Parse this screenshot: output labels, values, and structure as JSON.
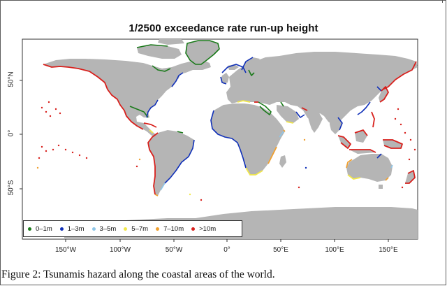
{
  "map": {
    "title": "1/2500 exceedance rate run-up height",
    "caption": "Figure 2: Tsunamis hazard along the coastal areas of the world.",
    "projection": "equirectangular",
    "land_color": "#b5b5b5",
    "ocean_color": "#ffffff",
    "lat_labels": {
      "n50": "50°N",
      "eq": "0°",
      "s50": "50°S"
    },
    "lon_labels": {
      "w150": "150°W",
      "w100": "100°W",
      "w50": "50°W",
      "zero": "0°",
      "e50": "50°E",
      "e100": "100°E",
      "e150": "150°E"
    },
    "legend": [
      {
        "label": "0–1m",
        "color": "#1a7a1a"
      },
      {
        "label": "1–3m",
        "color": "#1030b8"
      },
      {
        "label": "3–5m",
        "color": "#8ec6e8"
      },
      {
        "label": "5–7m",
        "color": "#f2e84a"
      },
      {
        "label": "7–10m",
        "color": "#f0a030"
      },
      {
        "label": ">10m",
        "color": "#d8201c"
      }
    ]
  }
}
